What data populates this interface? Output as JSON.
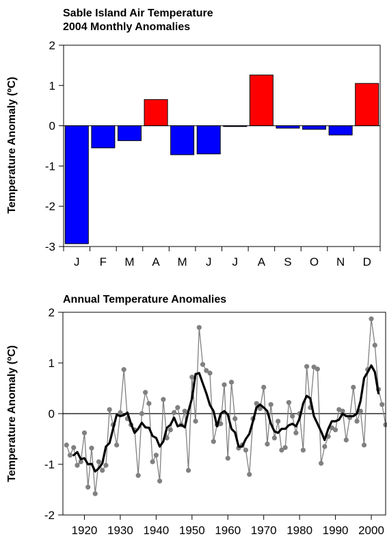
{
  "chart_data": [
    {
      "type": "bar",
      "title": "Sable Island Air Temperature\n2004 Monthly Anomalies",
      "title_lines": [
        "Sable Island Air Temperature",
        "2004 Monthly Anomalies"
      ],
      "xlabel": "",
      "ylabel": "Temperature Anomaly (ºC)",
      "ylim": [
        -3,
        2
      ],
      "yticks": [
        -3,
        -2,
        -1,
        0,
        1,
        2
      ],
      "grid": false,
      "categories": [
        "J",
        "F",
        "M",
        "A",
        "M",
        "J",
        "J",
        "A",
        "S",
        "O",
        "N",
        "D"
      ],
      "values": [
        -2.93,
        -0.55,
        -0.37,
        0.65,
        -0.72,
        -0.7,
        -0.02,
        1.26,
        -0.06,
        -0.09,
        -0.23,
        1.05
      ],
      "colors": {
        "negative": "#0000ff",
        "positive": "#ff0000",
        "outline": "#000000"
      }
    },
    {
      "type": "line",
      "title": "Annual Temperature Anomalies",
      "xlabel": "",
      "ylabel": "Temperature Anomaly (ºC)",
      "xlim": [
        1914,
        2004
      ],
      "ylim": [
        -2,
        2
      ],
      "xticks": [
        1920,
        1930,
        1940,
        1950,
        1960,
        1970,
        1980,
        1990,
        2000
      ],
      "yticks": [
        -2,
        -1,
        0,
        1,
        2
      ],
      "grid": false,
      "series": [
        {
          "style": "markers",
          "color": "#808080",
          "x": [
            1915,
            1916,
            1917,
            1918,
            1919,
            1920,
            1921,
            1922,
            1923,
            1924,
            1925,
            1926,
            1927,
            1928,
            1929,
            1930,
            1931,
            1932,
            1933,
            1934,
            1935,
            1936,
            1937,
            1938,
            1939,
            1940,
            1941,
            1942,
            1943,
            1944,
            1945,
            1946,
            1947,
            1948,
            1949,
            1950,
            1951,
            1952,
            1953,
            1954,
            1955,
            1956,
            1957,
            1958,
            1959,
            1960,
            1961,
            1962,
            1963,
            1964,
            1965,
            1966,
            1967,
            1968,
            1969,
            1970,
            1971,
            1972,
            1973,
            1974,
            1975,
            1976,
            1977,
            1978,
            1979,
            1980,
            1981,
            1982,
            1983,
            1984,
            1985,
            1986,
            1987,
            1988,
            1989,
            1990,
            1991,
            1992,
            1993,
            1994,
            1995,
            1996,
            1997,
            1998,
            1999,
            2000,
            2001,
            2002,
            2003,
            2004
          ],
          "y": [
            -0.62,
            -0.82,
            -0.67,
            -1.02,
            -0.95,
            -0.38,
            -1.45,
            -0.68,
            -1.58,
            -0.95,
            -1.12,
            -1.02,
            0.08,
            -0.22,
            -0.62,
            0.02,
            0.87,
            -0.1,
            -0.22,
            -0.32,
            -1.22,
            0.0,
            0.42,
            0.2,
            -0.95,
            -0.82,
            -1.33,
            0.28,
            -0.48,
            -0.32,
            0.02,
            0.12,
            -0.22,
            0.05,
            -1.12,
            0.72,
            -0.15,
            1.7,
            0.97,
            0.85,
            0.8,
            -0.55,
            -0.22,
            -0.2,
            0.57,
            -0.88,
            0.62,
            -0.1,
            -0.68,
            -0.62,
            -0.72,
            -1.2,
            -0.1,
            0.2,
            0.1,
            0.52,
            -0.6,
            0.18,
            -0.48,
            -0.15,
            -0.72,
            -0.67,
            0.22,
            -0.05,
            -0.38,
            0.0,
            -0.72,
            0.93,
            0.12,
            0.92,
            0.88,
            -0.98,
            -0.65,
            -0.45,
            -0.28,
            -0.32,
            0.08,
            0.05,
            -0.52,
            -0.08,
            0.52,
            -0.15,
            0.05,
            -0.62,
            0.87,
            1.87,
            1.35,
            0.48,
            0.18,
            -0.22
          ]
        },
        {
          "style": "smoothed",
          "color": "#000000",
          "x": [
            1917,
            1918,
            1919,
            1920,
            1921,
            1922,
            1923,
            1924,
            1925,
            1926,
            1927,
            1928,
            1929,
            1930,
            1931,
            1932,
            1933,
            1934,
            1935,
            1936,
            1937,
            1938,
            1939,
            1940,
            1941,
            1942,
            1943,
            1944,
            1945,
            1946,
            1947,
            1948,
            1949,
            1950,
            1951,
            1952,
            1953,
            1954,
            1955,
            1956,
            1957,
            1958,
            1959,
            1960,
            1961,
            1962,
            1963,
            1964,
            1965,
            1966,
            1967,
            1968,
            1969,
            1970,
            1971,
            1972,
            1973,
            1974,
            1975,
            1976,
            1977,
            1978,
            1979,
            1980,
            1981,
            1982,
            1983,
            1984,
            1985,
            1986,
            1987,
            1988,
            1989,
            1990,
            1991,
            1992,
            1993,
            1994,
            1995,
            1996,
            1997,
            1998,
            1999,
            2000,
            2001,
            2002
          ],
          "y": [
            -0.82,
            -0.76,
            -0.9,
            -0.88,
            -1.0,
            -0.99,
            -1.14,
            -1.08,
            -0.98,
            -0.65,
            -0.58,
            -0.3,
            -0.02,
            -0.05,
            -0.03,
            0.02,
            -0.2,
            -0.38,
            -0.3,
            -0.18,
            -0.27,
            -0.28,
            -0.44,
            -0.48,
            -0.65,
            -0.55,
            -0.28,
            -0.22,
            -0.08,
            -0.25,
            -0.22,
            -0.27,
            0.05,
            0.3,
            0.78,
            0.8,
            0.6,
            0.4,
            0.17,
            0.05,
            -0.25,
            0.0,
            0.05,
            -0.02,
            -0.3,
            -0.37,
            -0.65,
            -0.65,
            -0.5,
            -0.4,
            -0.15,
            0.12,
            0.18,
            0.12,
            0.05,
            -0.2,
            -0.35,
            -0.38,
            -0.3,
            -0.3,
            -0.23,
            -0.2,
            -0.25,
            -0.1,
            0.2,
            0.35,
            0.3,
            -0.05,
            -0.2,
            -0.35,
            -0.52,
            -0.3,
            -0.15,
            -0.15,
            -0.12,
            0.0,
            -0.05,
            -0.05,
            -0.05,
            0.0,
            0.25,
            0.7,
            0.82,
            0.95,
            0.82,
            0.4
          ]
        }
      ]
    }
  ]
}
